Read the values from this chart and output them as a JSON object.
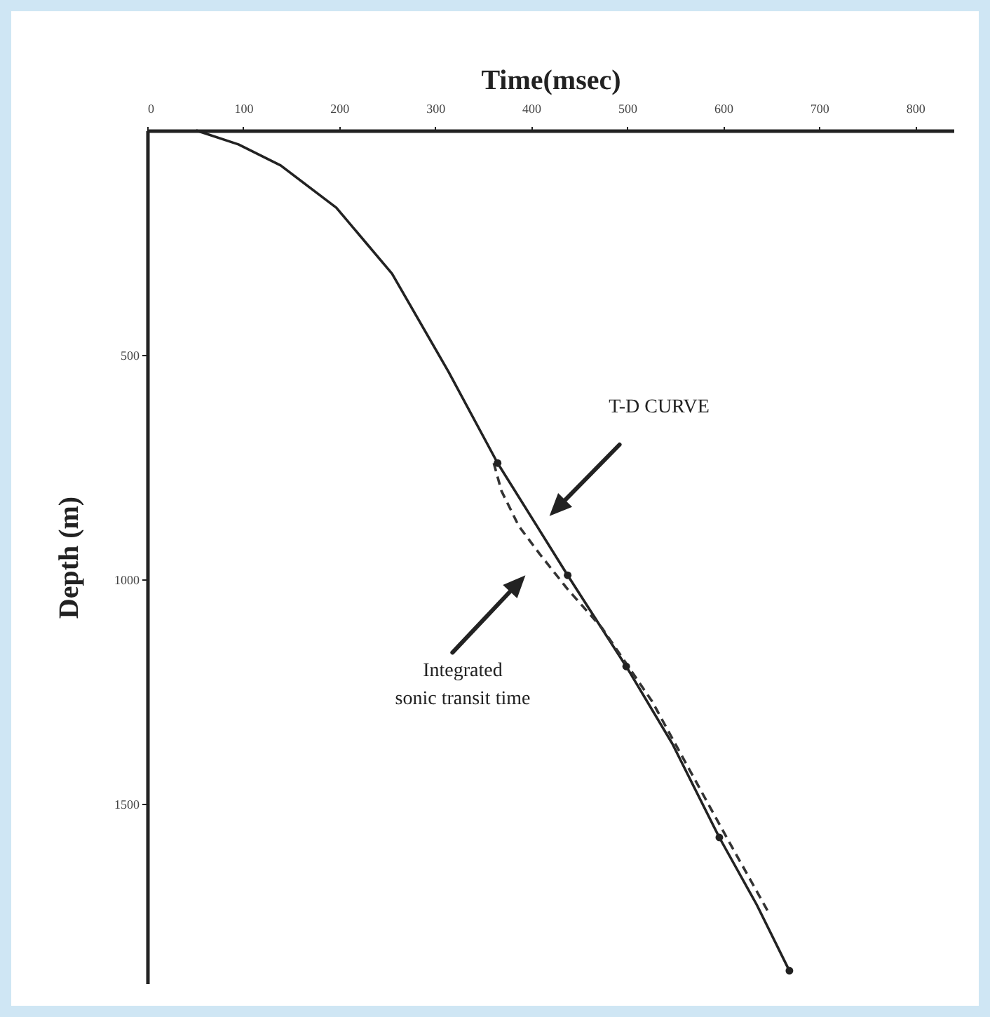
{
  "chart_data": {
    "type": "line",
    "xlabel": "Time(msec)",
    "ylabel": "Depth (m)",
    "xlim": [
      0,
      840
    ],
    "xticks": [
      0,
      100,
      200,
      300,
      400,
      500,
      600,
      700,
      800
    ],
    "ylim": [
      1900,
      0
    ],
    "yticks": [
      500,
      1000,
      1500
    ],
    "series": [
      {
        "color": "#222222",
        "line_style": "solid",
        "x": [
          51,
          95,
          139,
          197,
          255,
          314,
          365,
          438,
          499,
          547,
          596,
          635,
          669
        ],
        "values": [
          0,
          31,
          78,
          172,
          319,
          538,
          741,
          991,
          1194,
          1366,
          1575,
          1725,
          1872
        ]
      },
      {
        "color": "#333333",
        "line_style": "dashed",
        "x": [
          361,
          369,
          387,
          409,
          438,
          474,
          496,
          526,
          562,
          606,
          647
        ],
        "values": [
          741,
          803,
          881,
          944,
          1022,
          1109,
          1178,
          1272,
          1413,
          1584,
          1741
        ]
      },
      {
        "type": "scatter",
        "marker": "circle",
        "color": "#222222",
        "x": [
          365,
          438,
          499,
          596,
          669
        ],
        "values": [
          741,
          991,
          1194,
          1575,
          1872
        ]
      }
    ],
    "annotations": [
      "T-D CURVE",
      "Integrated\nsonic transit time"
    ]
  }
}
